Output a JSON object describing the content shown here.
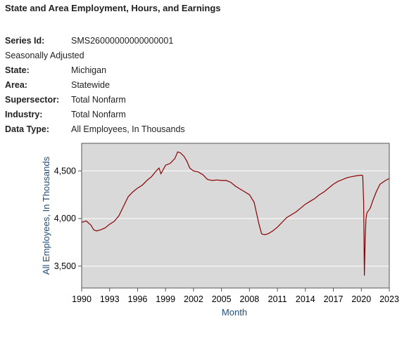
{
  "header": {
    "title": "State and Area Employment, Hours, and Earnings"
  },
  "meta": {
    "series_id_label": "Series Id:",
    "series_id": "SMS26000000000000001",
    "adjustment": "Seasonally Adjusted",
    "state_label": "State:",
    "state": "Michigan",
    "area_label": "Area:",
    "area": "Statewide",
    "supersector_label": "Supersector:",
    "supersector": "Total Nonfarm",
    "industry_label": "Industry:",
    "industry": "Total Nonfarm",
    "datatype_label": "Data Type:",
    "datatype": "All Employees, In Thousands"
  },
  "colors": {
    "line": "#8b0000",
    "plot_bg": "#d9d9d9",
    "axis_label": "#1f4e79"
  },
  "chart_data": {
    "type": "line",
    "xlabel": "Month",
    "ylabel": "All Employees, In Thousands",
    "xlim": [
      1990,
      2023
    ],
    "ylim": [
      3270,
      4790
    ],
    "grid": true,
    "xticks": [
      1990,
      1993,
      1996,
      1999,
      2002,
      2005,
      2008,
      2011,
      2014,
      2017,
      2020,
      2023
    ],
    "xtick_labels": [
      "1990",
      "1993",
      "1996",
      "1999",
      "2002",
      "2005",
      "2008",
      "2011",
      "2014",
      "2017",
      "2020",
      "2023"
    ],
    "yticks": [
      3500,
      4000,
      4500
    ],
    "ytick_labels": [
      "3,500",
      "4,000",
      "4,500"
    ],
    "x": [
      1990.0,
      1990.5,
      1991.0,
      1991.3,
      1991.6,
      1992.0,
      1992.5,
      1993.0,
      1993.5,
      1994.0,
      1994.5,
      1995.0,
      1995.5,
      1996.0,
      1996.5,
      1997.0,
      1997.5,
      1998.0,
      1998.3,
      1998.5,
      1999.0,
      1999.5,
      2000.0,
      2000.3,
      2000.6,
      2001.0,
      2001.3,
      2001.6,
      2002.0,
      2002.5,
      2003.0,
      2003.5,
      2004.0,
      2004.5,
      2005.0,
      2005.5,
      2006.0,
      2006.5,
      2007.0,
      2007.5,
      2008.0,
      2008.5,
      2009.0,
      2009.3,
      2009.6,
      2010.0,
      2010.5,
      2011.0,
      2011.5,
      2012.0,
      2012.5,
      2013.0,
      2013.5,
      2014.0,
      2014.5,
      2015.0,
      2015.5,
      2016.0,
      2016.5,
      2017.0,
      2017.5,
      2018.0,
      2018.5,
      2019.0,
      2019.5,
      2020.0,
      2020.15,
      2020.25,
      2020.33,
      2020.42,
      2020.5,
      2020.6,
      2020.75,
      2020.9,
      2021.0,
      2021.2,
      2021.4,
      2021.6,
      2021.8,
      2022.0,
      2022.3,
      2022.6,
      2023.0
    ],
    "y": [
      3960,
      3975,
      3930,
      3880,
      3870,
      3880,
      3900,
      3940,
      3970,
      4030,
      4130,
      4230,
      4280,
      4320,
      4350,
      4400,
      4440,
      4500,
      4530,
      4470,
      4560,
      4580,
      4630,
      4700,
      4690,
      4650,
      4600,
      4530,
      4500,
      4490,
      4460,
      4410,
      4400,
      4405,
      4400,
      4400,
      4380,
      4340,
      4310,
      4280,
      4250,
      4170,
      3950,
      3840,
      3830,
      3840,
      3870,
      3910,
      3960,
      4010,
      4040,
      4070,
      4110,
      4150,
      4180,
      4210,
      4250,
      4280,
      4320,
      4360,
      4390,
      4410,
      4430,
      4440,
      4450,
      4455,
      4450,
      4170,
      3400,
      3800,
      4000,
      4060,
      4080,
      4100,
      4120,
      4180,
      4230,
      4280,
      4320,
      4360,
      4380,
      4400,
      4420
    ]
  }
}
